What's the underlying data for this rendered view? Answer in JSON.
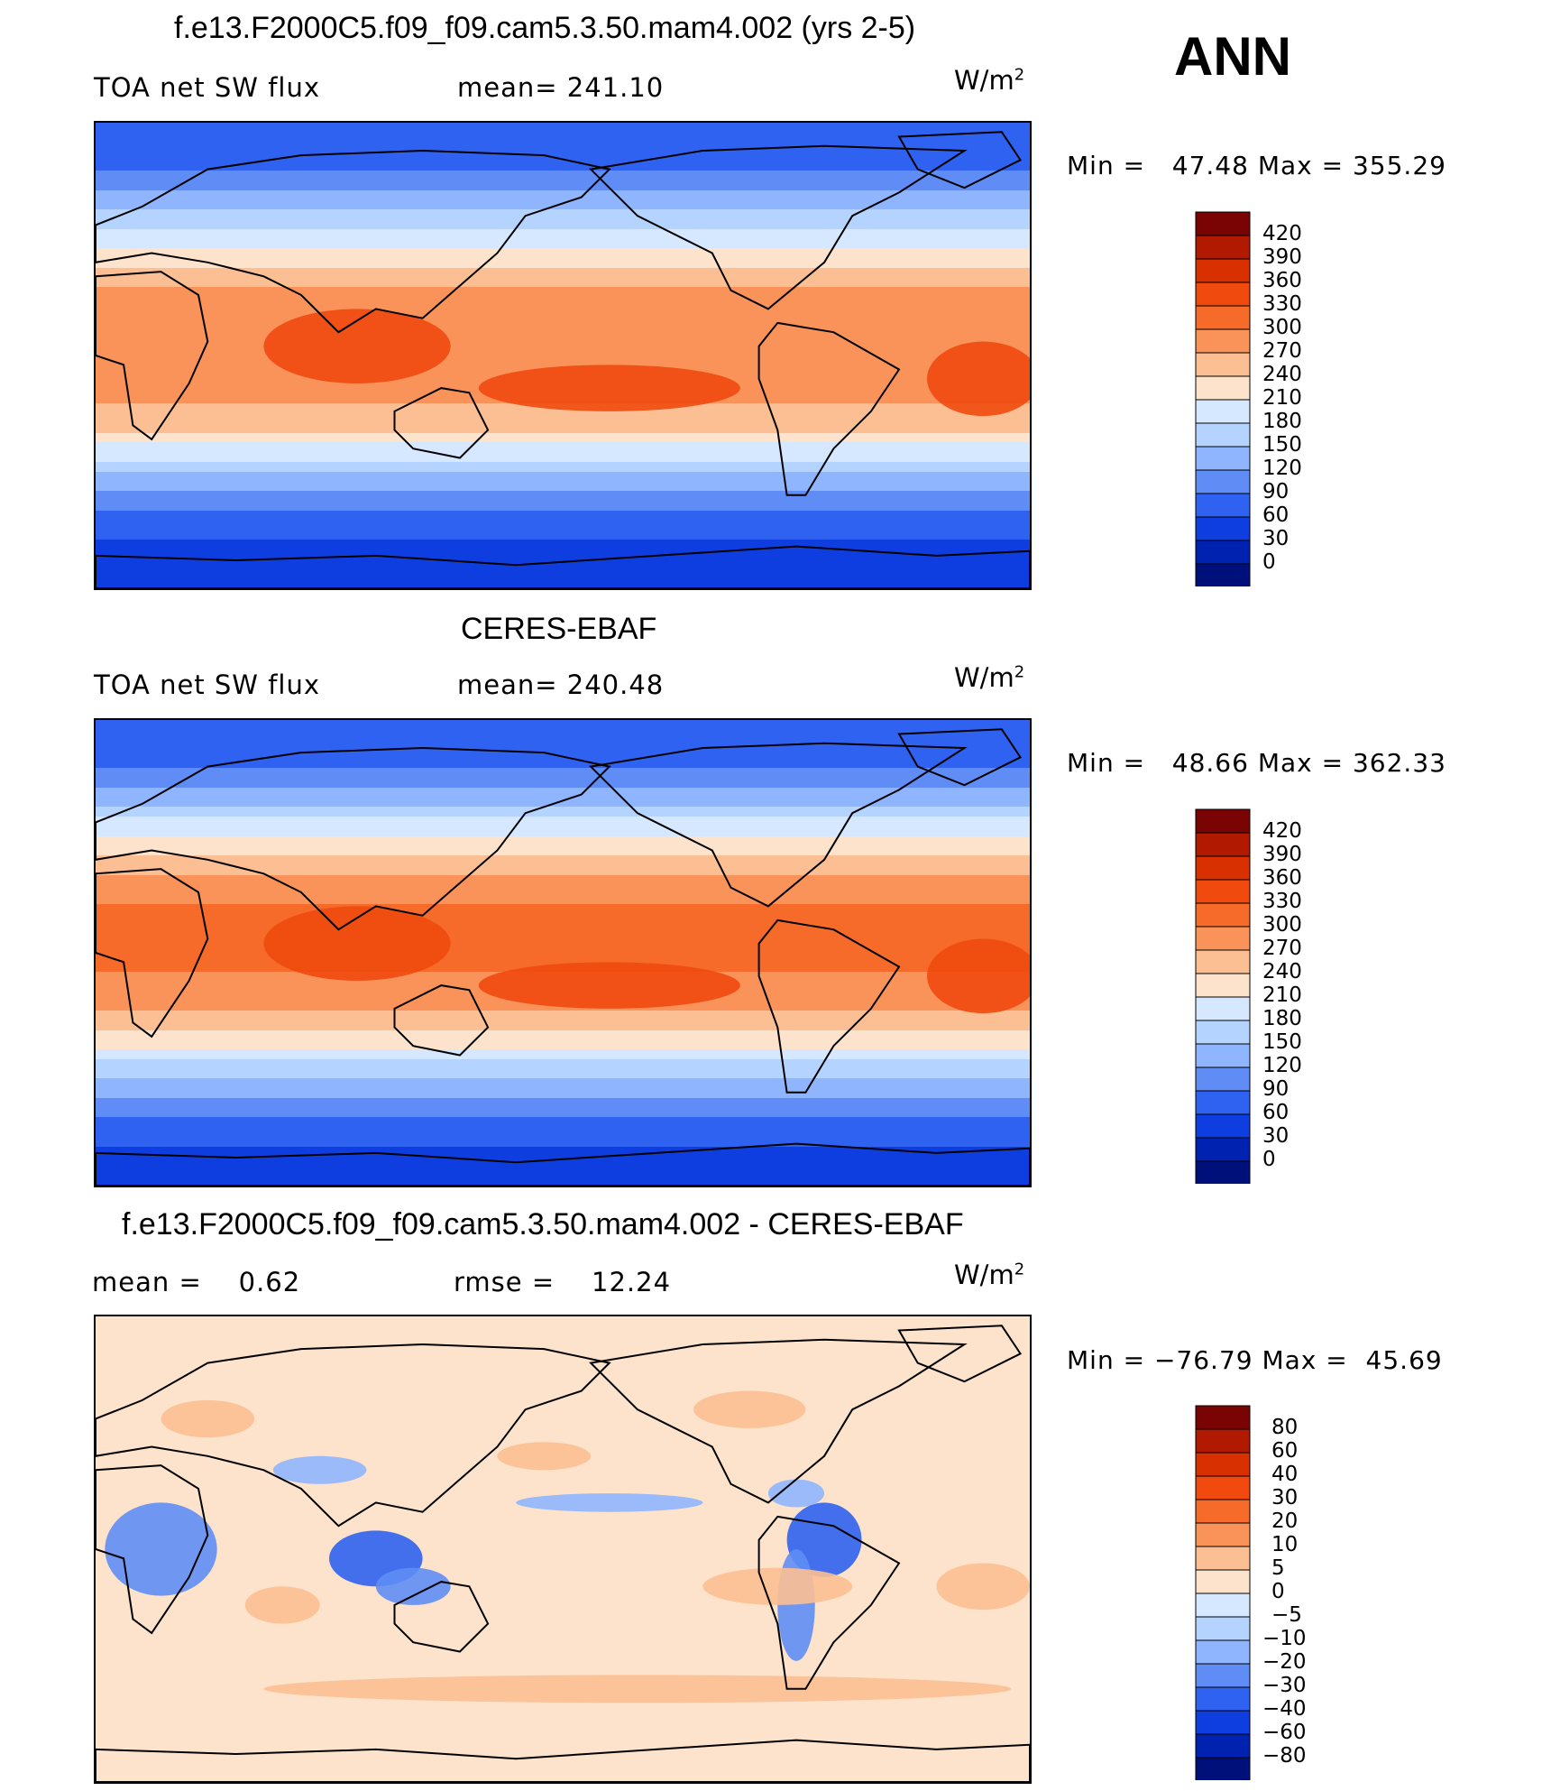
{
  "annotation": "ANN",
  "panels": [
    {
      "title": "f.e13.F2000C5.f09_f09.cam5.3.50.mam4.002 (yrs 2-5)",
      "variable_label": "TOA net SW flux",
      "stat1_label": "mean=",
      "stat1_value": "241.10",
      "units": "W/m",
      "units_exp": "2",
      "min_label": "Min =",
      "min_value": "47.48",
      "max_label": "Max =",
      "max_value": "355.29",
      "kind": "field"
    },
    {
      "title": "CERES-EBAF",
      "variable_label": "TOA net SW flux",
      "stat1_label": "mean=",
      "stat1_value": "240.48",
      "units": "W/m",
      "units_exp": "2",
      "min_label": "Min =",
      "min_value": "48.66",
      "max_label": "Max =",
      "max_value": "362.33",
      "kind": "field"
    },
    {
      "title": "f.e13.F2000C5.f09_f09.cam5.3.50.mam4.002 - CERES-EBAF",
      "variable_label": "mean =",
      "stat1_label": "rmse =",
      "mean_value": "0.62",
      "stat1_value": "12.24",
      "units": "W/m",
      "units_exp": "2",
      "min_label": "Min =",
      "min_value": "−76.79",
      "max_label": "Max =",
      "max_value": "45.69",
      "kind": "diff"
    }
  ],
  "chart_data": [
    {
      "type": "heatmap",
      "title": "f.e13.F2000C5.f09_f09.cam5.3.50.mam4.002 (yrs 2-5)",
      "variable": "TOA net SW flux",
      "units": "W/m2",
      "mean": 241.1,
      "min": 47.48,
      "max": 355.29,
      "colorbar_levels": [
        420,
        390,
        360,
        330,
        300,
        270,
        240,
        210,
        180,
        150,
        120,
        90,
        60,
        30,
        0
      ],
      "colorbar_colors": [
        "#7a0403",
        "#b21a00",
        "#d93000",
        "#f04a0e",
        "#f66a2a",
        "#f9935a",
        "#fcbf93",
        "#fde3cb",
        "#d6e8ff",
        "#b5d3ff",
        "#8fb5ff",
        "#5f8df5",
        "#2f62f0",
        "#0f3ee0",
        "#0022b0",
        "#00107a"
      ]
    },
    {
      "type": "heatmap",
      "title": "CERES-EBAF",
      "variable": "TOA net SW flux",
      "units": "W/m2",
      "mean": 240.48,
      "min": 48.66,
      "max": 362.33,
      "colorbar_levels": [
        420,
        390,
        360,
        330,
        300,
        270,
        240,
        210,
        180,
        150,
        120,
        90,
        60,
        30,
        0
      ],
      "colorbar_colors": [
        "#7a0403",
        "#b21a00",
        "#d93000",
        "#f04a0e",
        "#f66a2a",
        "#f9935a",
        "#fcbf93",
        "#fde3cb",
        "#d6e8ff",
        "#b5d3ff",
        "#8fb5ff",
        "#5f8df5",
        "#2f62f0",
        "#0f3ee0",
        "#0022b0",
        "#00107a"
      ]
    },
    {
      "type": "heatmap",
      "title": "f.e13.F2000C5.f09_f09.cam5.3.50.mam4.002 - CERES-EBAF",
      "units": "W/m2",
      "mean": 0.62,
      "rmse": 12.24,
      "min": -76.79,
      "max": 45.69,
      "colorbar_levels": [
        "80",
        "60",
        "40",
        "30",
        "20",
        "10",
        "5",
        "0",
        "−5",
        "−10",
        "−20",
        "−30",
        "−40",
        "−60",
        "−80"
      ],
      "colorbar_colors": [
        "#7a0403",
        "#b21a00",
        "#d93000",
        "#f04a0e",
        "#f66a2a",
        "#f9935a",
        "#fcbf93",
        "#fde3cb",
        "#d6e8ff",
        "#b5d3ff",
        "#8fb5ff",
        "#5f8df5",
        "#2f62f0",
        "#0f3ee0",
        "#0022b0",
        "#00107a"
      ]
    }
  ]
}
